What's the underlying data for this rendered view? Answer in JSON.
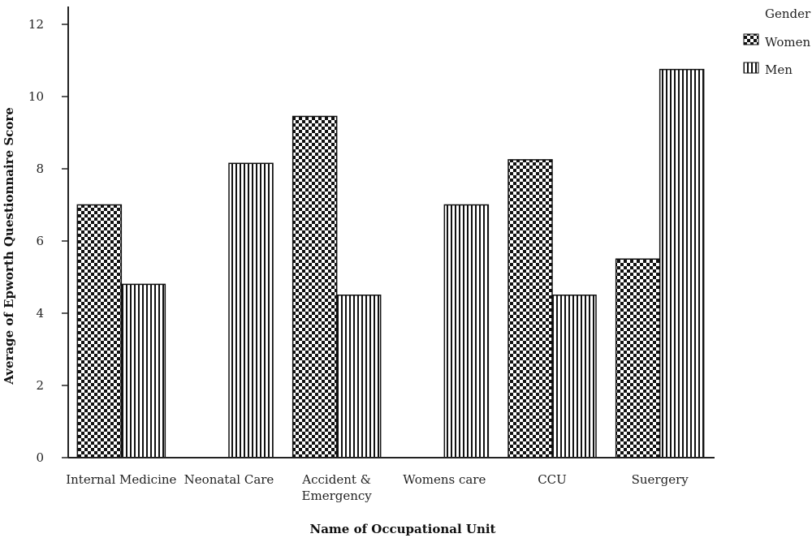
{
  "chart_data": {
    "type": "bar",
    "categories": [
      "Internal Medicine",
      "Neonatal Care",
      "Accident & Emergency",
      "Womens care",
      "CCU",
      "Suergery"
    ],
    "category_label_lines": [
      [
        "Internal Medicine"
      ],
      [
        "Neonatal Care"
      ],
      [
        "Accident &",
        "Emergency"
      ],
      [
        "Womens care"
      ],
      [
        "CCU"
      ],
      [
        "Suergery"
      ]
    ],
    "series": [
      {
        "name": "Women",
        "values": [
          7.0,
          null,
          9.45,
          null,
          8.25,
          5.5
        ],
        "pattern": "checker"
      },
      {
        "name": "Men",
        "values": [
          4.8,
          8.15,
          4.5,
          7.0,
          4.5,
          10.75
        ],
        "pattern": "vertical-stripes"
      }
    ],
    "title": "",
    "xlabel": "Name of Occupational Unit",
    "ylabel": "Average of Epworth Questionnaire Score",
    "ylim": [
      0,
      12
    ],
    "yticks": [
      0,
      2,
      4,
      6,
      8,
      10,
      12
    ],
    "grid": false,
    "legend": {
      "title": "Gender",
      "placement": "top-right"
    },
    "colors": {
      "fill_dark": "#111111",
      "fill_light": "#ffffff",
      "axis": "#222222"
    }
  }
}
